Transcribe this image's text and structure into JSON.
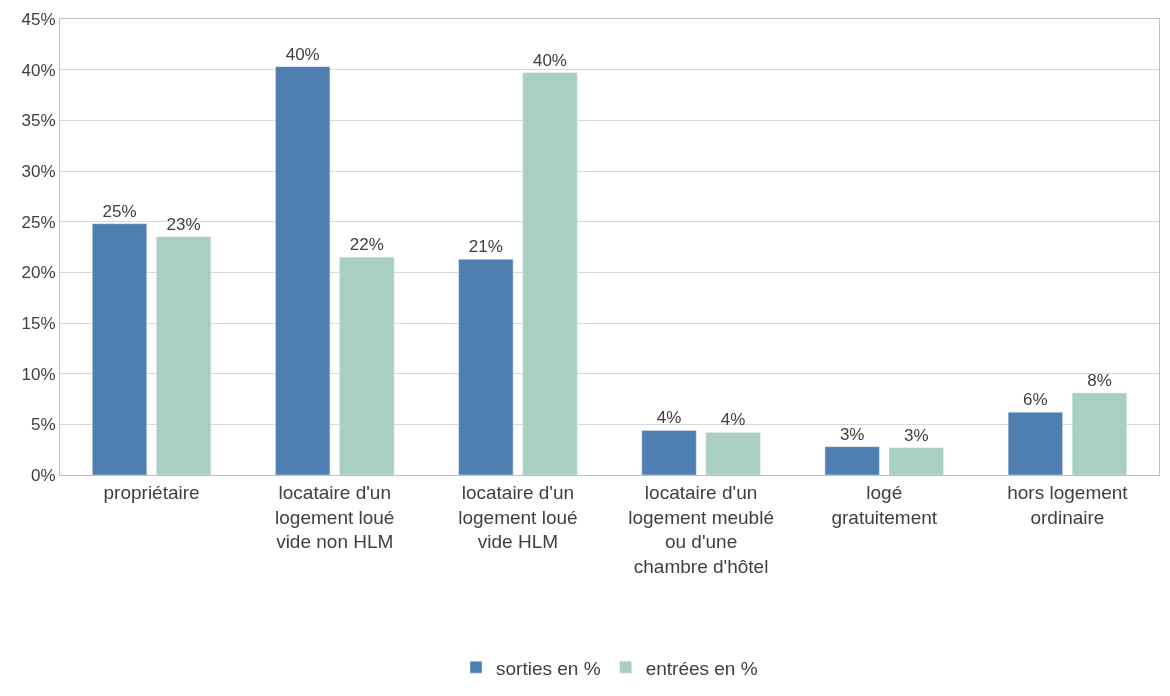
{
  "chart_data": {
    "type": "bar",
    "categories": [
      "propriétaire",
      "locataire d'un logement loué vide non HLM",
      "locataire d'un logement loué vide HLM",
      "locataire d'un logement meublé ou d'une chambre d'hôtel",
      "logé gratuitement",
      "hors logement ordinaire"
    ],
    "series": [
      {
        "name": "sorties en %",
        "color": "#4e7fb0",
        "values": [
          24.8,
          40.3,
          21.3,
          4.4,
          2.8,
          6.2
        ],
        "value_labels": [
          "25%",
          "40%",
          "21%",
          "4%",
          "3%",
          "6%"
        ]
      },
      {
        "name": "entrées en %",
        "color": "#a8cfc0",
        "values": [
          23.5,
          21.5,
          39.7,
          4.2,
          2.7,
          8.1
        ],
        "value_labels": [
          "23%",
          "22%",
          "40%",
          "4%",
          "3%",
          "8%"
        ]
      }
    ],
    "ylim": [
      0,
      45
    ],
    "yticks": [
      {
        "value": 0,
        "label": "0%"
      },
      {
        "value": 5,
        "label": "5%"
      },
      {
        "value": 10,
        "label": "10%"
      },
      {
        "value": 15,
        "label": "15%"
      },
      {
        "value": 20,
        "label": "20%"
      },
      {
        "value": 25,
        "label": "25%"
      },
      {
        "value": 30,
        "label": "30%"
      },
      {
        "value": 35,
        "label": "35%"
      },
      {
        "value": 40,
        "label": "40%"
      },
      {
        "value": 45,
        "label": "45%"
      }
    ],
    "grid": "y",
    "legend": "bottom"
  }
}
